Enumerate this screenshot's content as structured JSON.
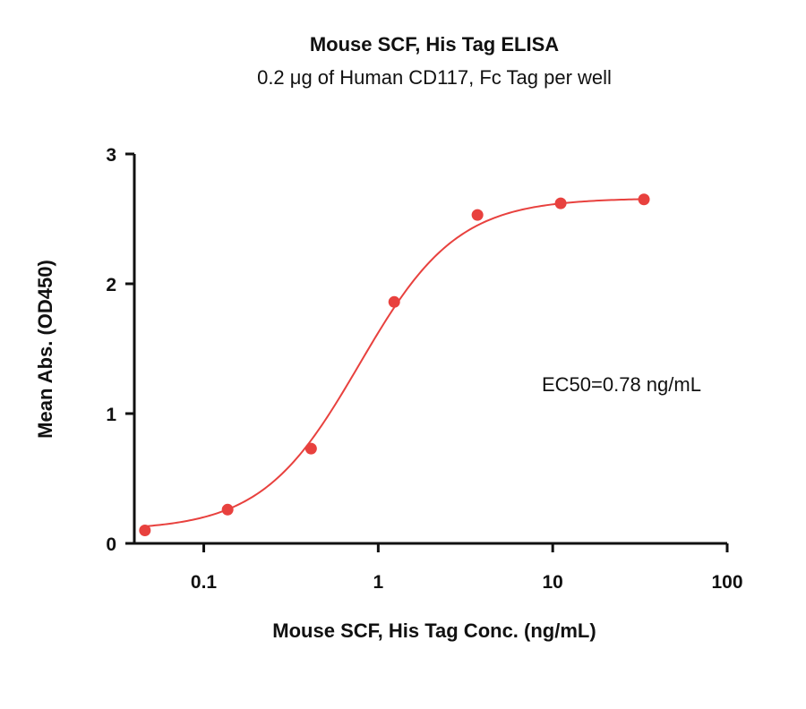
{
  "chart_data": {
    "type": "scatter",
    "title": "Mouse SCF, His Tag ELISA",
    "subtitle": "0.2 μg of Human CD117, Fc Tag per well",
    "xlabel": "Mouse SCF, His Tag Conc. (ng/mL)",
    "ylabel": "Mean Abs. (OD450)",
    "xscale": "log",
    "xlim": [
      0.04,
      100
    ],
    "ylim": [
      0,
      3
    ],
    "xticks": [
      0.1,
      1,
      10,
      100
    ],
    "xtick_labels": [
      "0.1",
      "1",
      "10",
      "100"
    ],
    "yticks": [
      0,
      1,
      2,
      3
    ],
    "ytick_labels": [
      "0",
      "1",
      "2",
      "3"
    ],
    "series": [
      {
        "x": [
          0.046,
          0.137,
          0.412,
          1.235,
          3.704,
          11.11,
          33.33
        ],
        "y": [
          0.1,
          0.26,
          0.73,
          1.86,
          2.53,
          2.62,
          2.65
        ],
        "color": "#e8413e",
        "fit": "4PL"
      }
    ],
    "fit_params": {
      "bottom": 0.1,
      "top": 2.66,
      "ec50": 0.78,
      "hill": 1.55
    },
    "annotation": "EC50=0.78 ng/mL",
    "grid": false
  }
}
